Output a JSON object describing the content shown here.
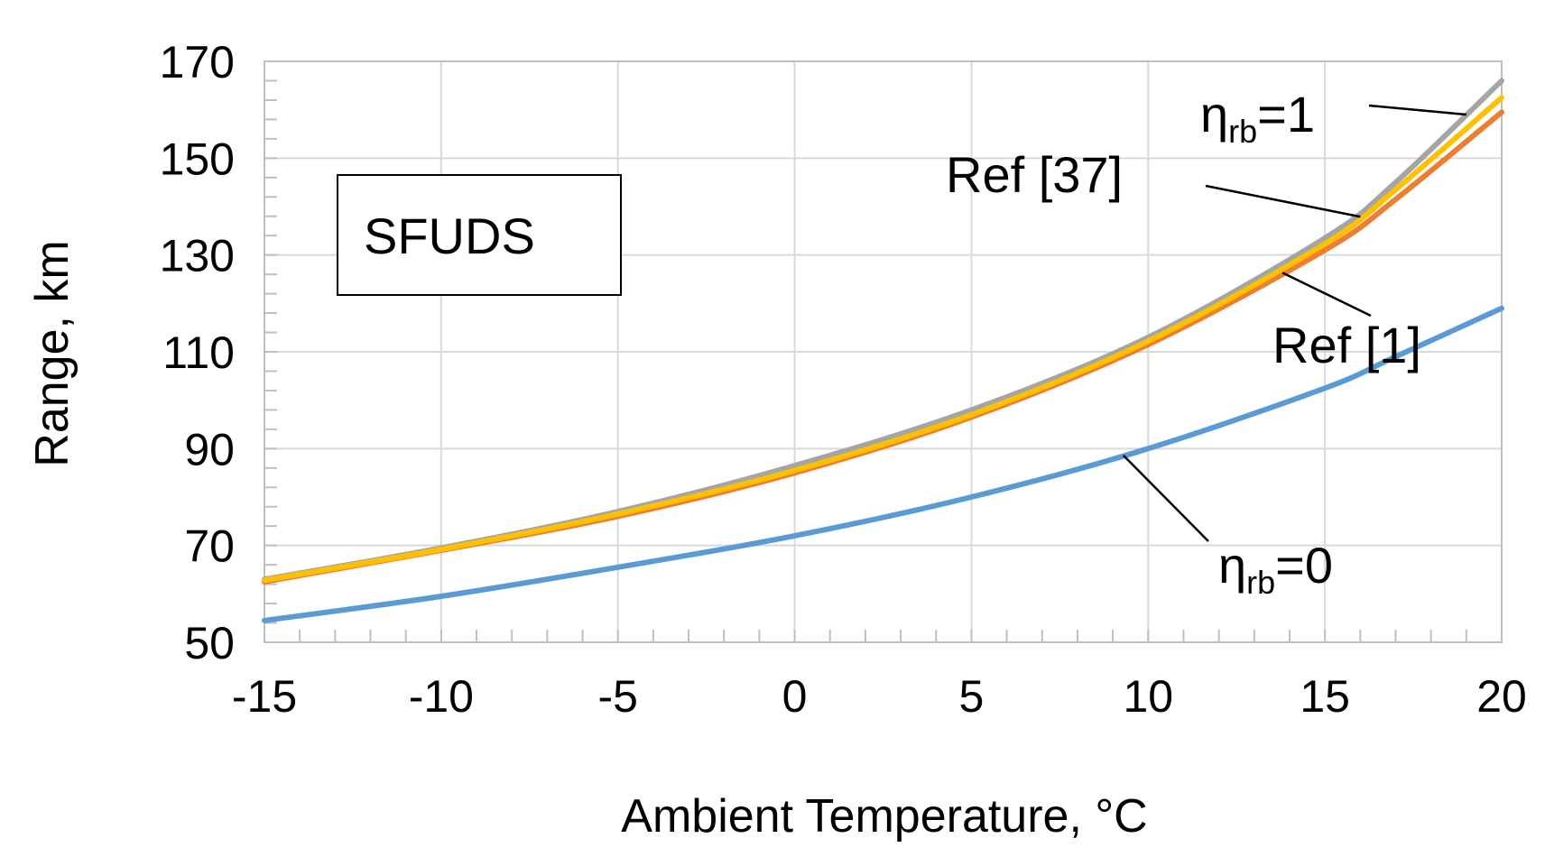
{
  "chart_data": {
    "type": "line",
    "title": "",
    "xlabel": "Ambient Temperature, °C",
    "ylabel": "Range, km",
    "xlim": [
      -15,
      20
    ],
    "ylim": [
      50,
      170
    ],
    "xticks": [
      -15,
      -10,
      -5,
      0,
      5,
      10,
      15,
      20
    ],
    "xtick_labels": [
      "-15",
      "-10",
      "-5",
      "0",
      "5",
      "10",
      "15",
      "20"
    ],
    "yticks": [
      50,
      70,
      90,
      110,
      130,
      150,
      170
    ],
    "ytick_labels": [
      "50",
      "70",
      "90",
      "110",
      "130",
      "150",
      "170"
    ],
    "x_minor_step": 1,
    "y_minor_step": 4,
    "grid": true,
    "legend": "none",
    "inset_label": "SFUDS",
    "x": [
      -15,
      -10,
      -5,
      0,
      5,
      10,
      15,
      17,
      20
    ],
    "series": [
      {
        "name": "η_rb=0",
        "color": "#5B9BD5",
        "values": [
          54.5,
          59.5,
          65.5,
          72,
          80,
          90,
          102.5,
          109,
          119
        ]
      },
      {
        "name": "Ref [1]",
        "color": "#ED7D31",
        "values": [
          62.5,
          69,
          76,
          85,
          96.5,
          111.5,
          131,
          141.5,
          159.5
        ]
      },
      {
        "name": "η_rb=1",
        "color": "#A5A5A5",
        "values": [
          63,
          69.5,
          77,
          86.5,
          98,
          113,
          133.5,
          145,
          166
        ]
      },
      {
        "name": "Ref [37]",
        "color": "#FFC000",
        "values": [
          62.8,
          69.2,
          76.5,
          85.5,
          97,
          112.2,
          132.3,
          143.5,
          162.5
        ]
      }
    ],
    "annotations": [
      {
        "key": "eta1",
        "main": "η",
        "sub": "rb",
        "rest": "=1",
        "target_series": "η_rb=1",
        "at_x": 19.0
      },
      {
        "key": "ref37",
        "text": "Ref [37]",
        "target_series": "Ref [37]",
        "at_x": 16.0
      },
      {
        "key": "ref1",
        "text": "Ref [1]",
        "target_series": "Ref [1]",
        "at_x": 13.8
      },
      {
        "key": "eta0",
        "main": "η",
        "sub": "rb",
        "rest": "=0",
        "target_series": "η_rb=0",
        "at_x": 9.3
      }
    ]
  }
}
